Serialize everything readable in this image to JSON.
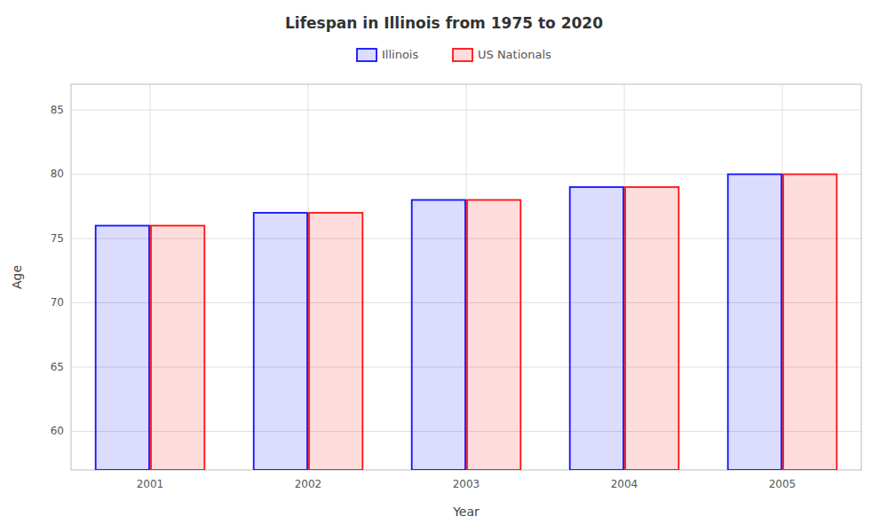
{
  "chart_data": {
    "type": "bar",
    "title": "Lifespan in Illinois from 1975 to 2020",
    "xlabel": "Year",
    "ylabel": "Age",
    "categories": [
      "2001",
      "2002",
      "2003",
      "2004",
      "2005"
    ],
    "series": [
      {
        "name": "Illinois",
        "color": "#1111ff",
        "values": [
          76,
          77,
          78,
          79,
          80
        ]
      },
      {
        "name": "US Nationals",
        "color": "#ff1111",
        "values": [
          76,
          77,
          78,
          79,
          80
        ]
      }
    ],
    "ylim": [
      57,
      87
    ],
    "yticks": [
      60,
      65,
      70,
      75,
      80,
      85
    ],
    "grid": true,
    "legend": "top"
  }
}
